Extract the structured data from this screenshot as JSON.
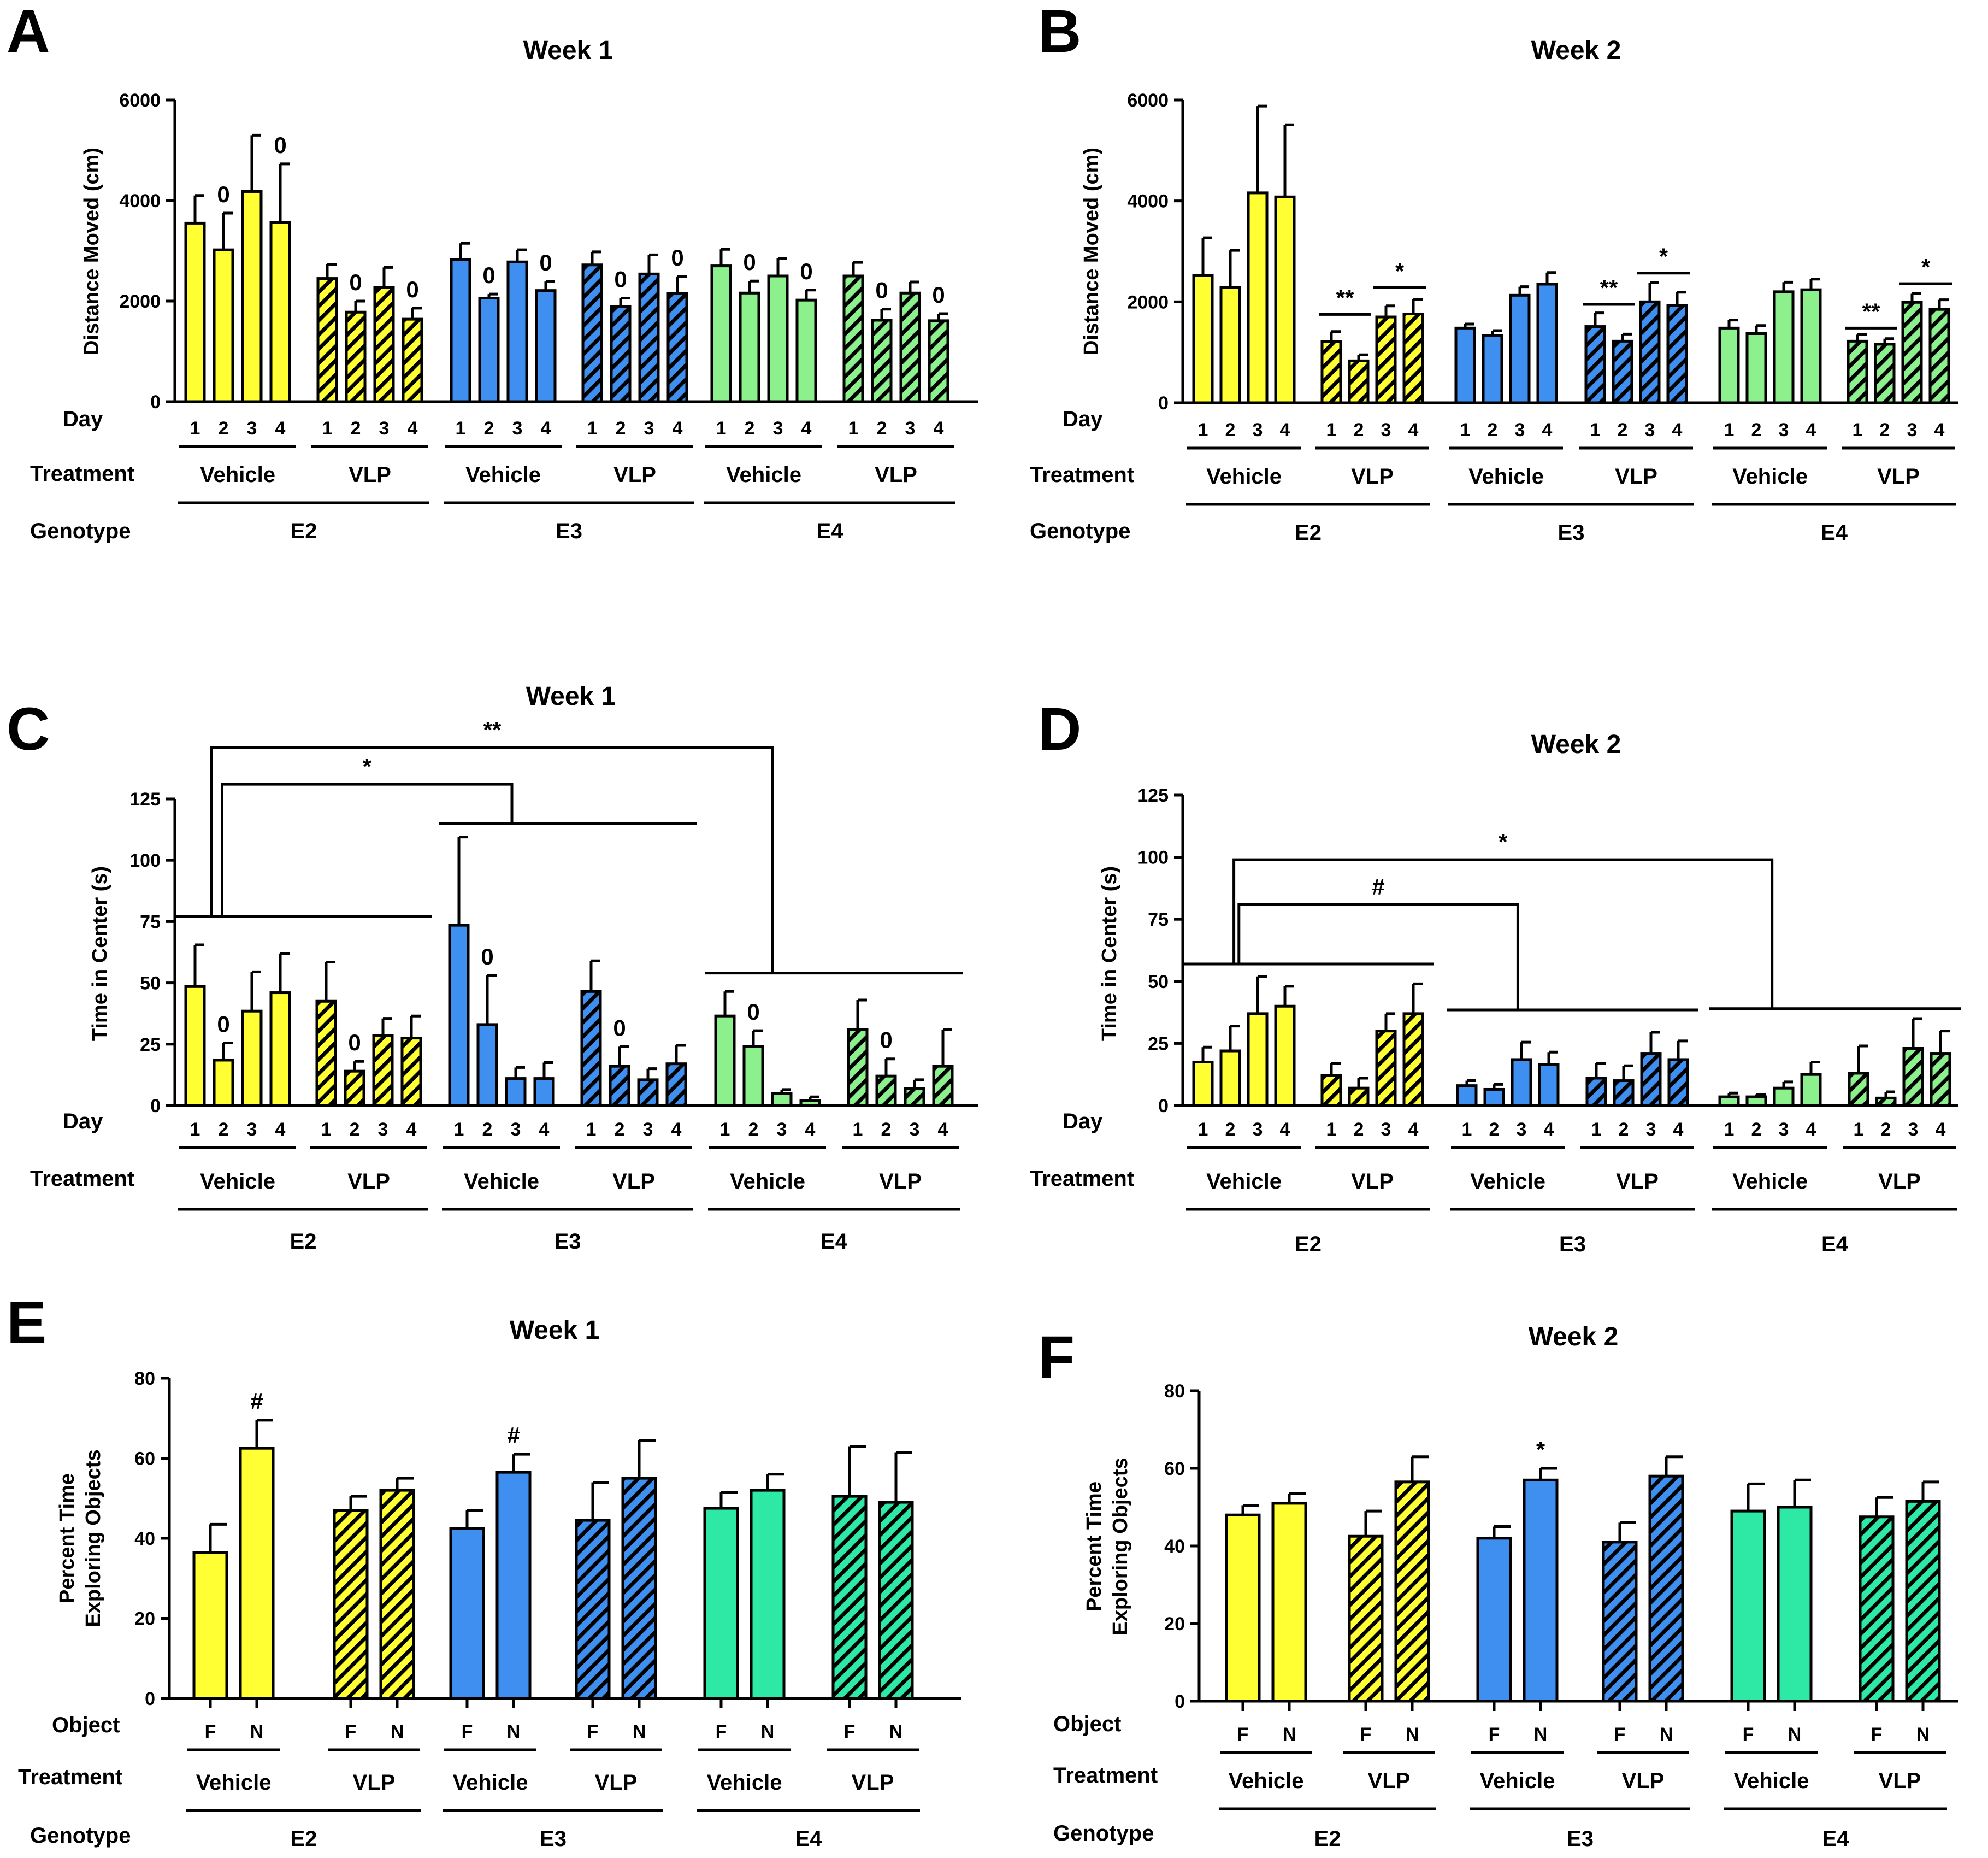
{
  "figure": {
    "background": "#ffffff",
    "stroke": "#000000",
    "colors": {
      "E2": "#ffff33",
      "E3": "#3f8ff0",
      "E4": "#8cf08c",
      "E4_nor": "#2ee8a6"
    }
  },
  "chart_data": [
    {
      "panel": "A",
      "type": "bar",
      "title": "Week 1",
      "ylabel": "Distance Moved (cm)",
      "ylim": [
        0,
        6000
      ],
      "yticks": [
        0,
        2000,
        4000,
        6000
      ],
      "xrow_label": "Day",
      "treatment_label": "Treatment",
      "genotype_label": "Genotype",
      "genotypes": [
        "E2",
        "E3",
        "E4"
      ],
      "treatments": [
        "Vehicle",
        "VLP"
      ],
      "categories": [
        "1",
        "2",
        "3",
        "4"
      ],
      "groups": [
        {
          "genotype": "E2",
          "treatment": "Vehicle",
          "hatched": false,
          "values": [
            3550,
            3020,
            4180,
            3570
          ],
          "errors": [
            550,
            730,
            1120,
            1160
          ],
          "marks": [
            "",
            "0",
            "",
            "0"
          ]
        },
        {
          "genotype": "E2",
          "treatment": "VLP",
          "hatched": true,
          "values": [
            2450,
            1780,
            2270,
            1640
          ],
          "errors": [
            280,
            220,
            400,
            220
          ],
          "marks": [
            "",
            "0",
            "",
            "0"
          ]
        },
        {
          "genotype": "E3",
          "treatment": "Vehicle",
          "hatched": false,
          "values": [
            2830,
            2060,
            2780,
            2210
          ],
          "errors": [
            320,
            80,
            240,
            180
          ],
          "marks": [
            "",
            "0",
            "",
            "0"
          ]
        },
        {
          "genotype": "E3",
          "treatment": "VLP",
          "hatched": true,
          "values": [
            2720,
            1890,
            2540,
            2150
          ],
          "errors": [
            260,
            170,
            380,
            340
          ],
          "marks": [
            "",
            "0",
            "",
            "0"
          ]
        },
        {
          "genotype": "E4",
          "treatment": "Vehicle",
          "hatched": false,
          "values": [
            2700,
            2160,
            2500,
            2020
          ],
          "errors": [
            330,
            240,
            350,
            200
          ],
          "marks": [
            "",
            "0",
            "",
            "0"
          ]
        },
        {
          "genotype": "E4",
          "treatment": "VLP",
          "hatched": true,
          "values": [
            2500,
            1620,
            2160,
            1610
          ],
          "errors": [
            270,
            220,
            220,
            140
          ],
          "marks": [
            "",
            "0",
            "",
            "0"
          ]
        }
      ],
      "brackets": []
    },
    {
      "panel": "B",
      "type": "bar",
      "title": "Week 2",
      "ylabel": "Distance Moved (cm)",
      "ylim": [
        0,
        6000
      ],
      "yticks": [
        0,
        2000,
        4000,
        6000
      ],
      "xrow_label": "Day",
      "treatment_label": "Treatment",
      "genotype_label": "Genotype",
      "genotypes": [
        "E2",
        "E3",
        "E4"
      ],
      "treatments": [
        "Vehicle",
        "VLP"
      ],
      "categories": [
        "1",
        "2",
        "3",
        "4"
      ],
      "groups": [
        {
          "genotype": "E2",
          "treatment": "Vehicle",
          "hatched": false,
          "values": [
            2520,
            2280,
            4160,
            4080
          ],
          "errors": [
            750,
            740,
            1720,
            1430
          ],
          "marks": [
            "",
            "",
            "",
            ""
          ]
        },
        {
          "genotype": "E2",
          "treatment": "VLP",
          "hatched": true,
          "values": [
            1210,
            830,
            1700,
            1760
          ],
          "errors": [
            200,
            120,
            220,
            290
          ],
          "marks": [
            "",
            "",
            "",
            ""
          ]
        },
        {
          "genotype": "E3",
          "treatment": "Vehicle",
          "hatched": false,
          "values": [
            1480,
            1330,
            2130,
            2350
          ],
          "errors": [
            80,
            100,
            170,
            230
          ],
          "marks": [
            "",
            "",
            "",
            ""
          ]
        },
        {
          "genotype": "E3",
          "treatment": "VLP",
          "hatched": true,
          "values": [
            1510,
            1220,
            2000,
            1930
          ],
          "errors": [
            270,
            140,
            380,
            260
          ],
          "marks": [
            "",
            "",
            "",
            ""
          ]
        },
        {
          "genotype": "E4",
          "treatment": "Vehicle",
          "hatched": false,
          "values": [
            1480,
            1370,
            2200,
            2240
          ],
          "errors": [
            160,
            160,
            190,
            210
          ],
          "marks": [
            "",
            "",
            "",
            ""
          ]
        },
        {
          "genotype": "E4",
          "treatment": "VLP",
          "hatched": true,
          "values": [
            1220,
            1160,
            1990,
            1850
          ],
          "errors": [
            130,
            110,
            170,
            190
          ],
          "marks": [
            "",
            "",
            "",
            ""
          ]
        }
      ],
      "brackets": [
        {
          "kind": "line",
          "group": 1,
          "from": 0,
          "to": 1,
          "y": 1750,
          "label": "**"
        },
        {
          "kind": "line",
          "group": 1,
          "from": 2,
          "to": 3,
          "y": 2280,
          "label": "*"
        },
        {
          "kind": "line",
          "group": 3,
          "from": 0,
          "to": 1,
          "y": 1950,
          "label": "**"
        },
        {
          "kind": "line",
          "group": 3,
          "from": 2,
          "to": 3,
          "y": 2570,
          "label": "*"
        },
        {
          "kind": "line",
          "group": 5,
          "from": 0,
          "to": 1,
          "y": 1480,
          "label": "**"
        },
        {
          "kind": "line",
          "group": 5,
          "from": 2,
          "to": 3,
          "y": 2360,
          "label": "*"
        }
      ]
    },
    {
      "panel": "C",
      "type": "bar",
      "title": "Week 1",
      "ylabel": "Time in Center (s)",
      "ylim": [
        0,
        125
      ],
      "yticks": [
        0,
        25,
        50,
        75,
        100,
        125
      ],
      "xrow_label": "Day",
      "treatment_label": "Treatment",
      "genotype_label": "",
      "genotypes": [
        "E2",
        "E3",
        "E4"
      ],
      "treatments": [
        "Vehicle",
        "VLP"
      ],
      "categories": [
        "1",
        "2",
        "3",
        "4"
      ],
      "groups": [
        {
          "genotype": "E2",
          "treatment": "Vehicle",
          "hatched": false,
          "values": [
            48.5,
            18.5,
            38.5,
            46
          ],
          "errors": [
            17,
            7,
            16,
            16
          ],
          "marks": [
            "",
            "0",
            "",
            ""
          ]
        },
        {
          "genotype": "E2",
          "treatment": "VLP",
          "hatched": true,
          "values": [
            42.5,
            14,
            28.5,
            27.5
          ],
          "errors": [
            16,
            4,
            7,
            9
          ],
          "marks": [
            "",
            "0",
            "",
            ""
          ]
        },
        {
          "genotype": "E3",
          "treatment": "Vehicle",
          "hatched": false,
          "values": [
            73.5,
            33,
            11,
            11
          ],
          "errors": [
            36,
            20,
            4.5,
            6.5
          ],
          "marks": [
            "",
            "0",
            "",
            ""
          ]
        },
        {
          "genotype": "E3",
          "treatment": "VLP",
          "hatched": true,
          "values": [
            46.5,
            16,
            10.5,
            17
          ],
          "errors": [
            12.5,
            8,
            4.5,
            7.5
          ],
          "marks": [
            "",
            "0",
            "",
            ""
          ]
        },
        {
          "genotype": "E4",
          "treatment": "Vehicle",
          "hatched": false,
          "values": [
            36.5,
            24,
            5,
            2
          ],
          "errors": [
            10,
            6.5,
            1.5,
            1.5
          ],
          "marks": [
            "",
            "0",
            "",
            ""
          ]
        },
        {
          "genotype": "E4",
          "treatment": "VLP",
          "hatched": true,
          "values": [
            31,
            12,
            7,
            16
          ],
          "errors": [
            12,
            7,
            3.5,
            15
          ],
          "marks": [
            "",
            "0",
            "",
            ""
          ]
        }
      ],
      "brackets": [
        {
          "kind": "hline",
          "from_group": 0,
          "to_group": 1,
          "y": 77
        },
        {
          "kind": "hline",
          "from_group": 2,
          "to_group": 3,
          "y": 115
        },
        {
          "kind": "hline",
          "from_group": 4,
          "to_group": 5,
          "y": 54
        },
        {
          "kind": "connector",
          "x1_group": 0.35,
          "x2_group": 2.6,
          "y1": 77,
          "y2": 115,
          "top": 131,
          "label": "*"
        },
        {
          "kind": "connector",
          "x1_group": 0.25,
          "x2_group": 4.55,
          "y1": 77,
          "y2": 54,
          "top": 146,
          "label": "**"
        }
      ]
    },
    {
      "panel": "D",
      "type": "bar",
      "title": "Week 2",
      "ylabel": "Time in Center (s)",
      "ylim": [
        0,
        125
      ],
      "yticks": [
        0,
        25,
        50,
        75,
        100,
        125
      ],
      "xrow_label": "Day",
      "treatment_label": "Treatment",
      "genotype_label": "",
      "genotypes": [
        "E2",
        "E3",
        "E4"
      ],
      "treatments": [
        "Vehicle",
        "VLP"
      ],
      "categories": [
        "1",
        "2",
        "3",
        "4"
      ],
      "groups": [
        {
          "genotype": "E2",
          "treatment": "Vehicle",
          "hatched": false,
          "values": [
            17.5,
            22,
            37,
            40
          ],
          "errors": [
            6,
            10,
            15,
            8
          ],
          "marks": [
            "",
            "",
            "",
            ""
          ]
        },
        {
          "genotype": "E2",
          "treatment": "VLP",
          "hatched": true,
          "values": [
            12,
            7,
            30,
            37
          ],
          "errors": [
            5,
            4,
            7,
            12
          ],
          "marks": [
            "",
            "",
            "",
            ""
          ]
        },
        {
          "genotype": "E3",
          "treatment": "Vehicle",
          "hatched": false,
          "values": [
            8,
            6.5,
            18.5,
            16.5
          ],
          "errors": [
            2,
            2,
            7,
            5
          ],
          "marks": [
            "",
            "",
            "",
            ""
          ]
        },
        {
          "genotype": "E3",
          "treatment": "VLP",
          "hatched": true,
          "values": [
            11,
            10,
            21,
            18.5
          ],
          "errors": [
            6,
            6,
            8.5,
            7.5
          ],
          "marks": [
            "",
            "",
            "",
            ""
          ]
        },
        {
          "genotype": "E4",
          "treatment": "Vehicle",
          "hatched": false,
          "values": [
            3.5,
            3.5,
            7,
            12.5
          ],
          "errors": [
            1.5,
            1,
            2.5,
            5
          ],
          "marks": [
            "",
            "",
            "",
            ""
          ]
        },
        {
          "genotype": "E4",
          "treatment": "VLP",
          "hatched": true,
          "values": [
            13,
            3,
            23,
            21
          ],
          "errors": [
            11,
            2.5,
            12,
            9
          ],
          "marks": [
            "",
            "",
            "",
            ""
          ]
        }
      ],
      "brackets": [
        {
          "kind": "hline",
          "from_group": 0,
          "to_group": 1,
          "y": 57
        },
        {
          "kind": "hline",
          "from_group": 2,
          "to_group": 3,
          "y": 38.5
        },
        {
          "kind": "hline",
          "from_group": 4,
          "to_group": 5,
          "y": 39
        },
        {
          "kind": "connector",
          "x1_group": 0.45,
          "x2_group": 2.6,
          "y1": 57,
          "y2": 38.5,
          "top": 81,
          "label": "#"
        },
        {
          "kind": "connector",
          "x1_group": 0.4,
          "x2_group": 4.52,
          "y1": 57,
          "y2": 39,
          "top": 99,
          "label": "*"
        }
      ]
    },
    {
      "panel": "E",
      "type": "bar",
      "title": "Week 1",
      "ylabel": "Percent Time",
      "ylabel2": "Exploring Objects",
      "ylim": [
        0,
        80
      ],
      "yticks": [
        0,
        20,
        40,
        60,
        80
      ],
      "xrow_label": "Object",
      "treatment_label": "Treatment",
      "genotype_label": "Genotype",
      "genotypes": [
        "E2",
        "E3",
        "E4"
      ],
      "treatments": [
        "Vehicle",
        "VLP"
      ],
      "categories": [
        "F",
        "N"
      ],
      "groups": [
        {
          "genotype": "E2",
          "treatment": "Vehicle",
          "hatched": false,
          "values": [
            36.5,
            62.5
          ],
          "errors": [
            7,
            7
          ],
          "marks": [
            "",
            "#"
          ]
        },
        {
          "genotype": "E2",
          "treatment": "VLP",
          "hatched": true,
          "values": [
            47,
            52
          ],
          "errors": [
            3.5,
            3
          ],
          "marks": [
            "",
            ""
          ]
        },
        {
          "genotype": "E3",
          "treatment": "Vehicle",
          "hatched": false,
          "values": [
            42.5,
            56.5
          ],
          "errors": [
            4.5,
            4.5
          ],
          "marks": [
            "",
            "#"
          ]
        },
        {
          "genotype": "E3",
          "treatment": "VLP",
          "hatched": true,
          "values": [
            44.5,
            55
          ],
          "errors": [
            9.5,
            9.5
          ],
          "marks": [
            "",
            ""
          ]
        },
        {
          "genotype": "E4",
          "treatment": "Vehicle",
          "hatched": false,
          "values": [
            47.5,
            52
          ],
          "errors": [
            4,
            4
          ],
          "marks": [
            "",
            ""
          ]
        },
        {
          "genotype": "E4",
          "treatment": "VLP",
          "hatched": true,
          "values": [
            50.5,
            49
          ],
          "errors": [
            12.5,
            12.5
          ],
          "marks": [
            "",
            ""
          ]
        }
      ],
      "brackets": []
    },
    {
      "panel": "F",
      "type": "bar",
      "title": "Week 2",
      "ylabel": "Percent Time",
      "ylabel2": "Exploring Objects",
      "ylim": [
        0,
        80
      ],
      "yticks": [
        0,
        20,
        40,
        60,
        80
      ],
      "xrow_label": "Object",
      "treatment_label": "Treatment",
      "genotype_label": "Genotype",
      "genotypes": [
        "E2",
        "E3",
        "E4"
      ],
      "treatments": [
        "Vehicle",
        "VLP"
      ],
      "categories": [
        "F",
        "N"
      ],
      "groups": [
        {
          "genotype": "E2",
          "treatment": "Vehicle",
          "hatched": false,
          "values": [
            48,
            51
          ],
          "errors": [
            2.5,
            2.5
          ],
          "marks": [
            "",
            ""
          ]
        },
        {
          "genotype": "E2",
          "treatment": "VLP",
          "hatched": true,
          "values": [
            42.5,
            56.5
          ],
          "errors": [
            6.5,
            6.5
          ],
          "marks": [
            "",
            ""
          ]
        },
        {
          "genotype": "E3",
          "treatment": "Vehicle",
          "hatched": false,
          "values": [
            42,
            57
          ],
          "errors": [
            3,
            3
          ],
          "marks": [
            "",
            "*"
          ]
        },
        {
          "genotype": "E3",
          "treatment": "VLP",
          "hatched": true,
          "values": [
            41,
            58
          ],
          "errors": [
            5,
            5
          ],
          "marks": [
            "",
            ""
          ]
        },
        {
          "genotype": "E4",
          "treatment": "Vehicle",
          "hatched": false,
          "values": [
            49,
            50
          ],
          "errors": [
            7,
            7
          ],
          "marks": [
            "",
            ""
          ]
        },
        {
          "genotype": "E4",
          "treatment": "VLP",
          "hatched": true,
          "values": [
            47.5,
            51.5
          ],
          "errors": [
            5,
            5
          ],
          "marks": [
            "",
            ""
          ]
        }
      ],
      "brackets": []
    }
  ]
}
